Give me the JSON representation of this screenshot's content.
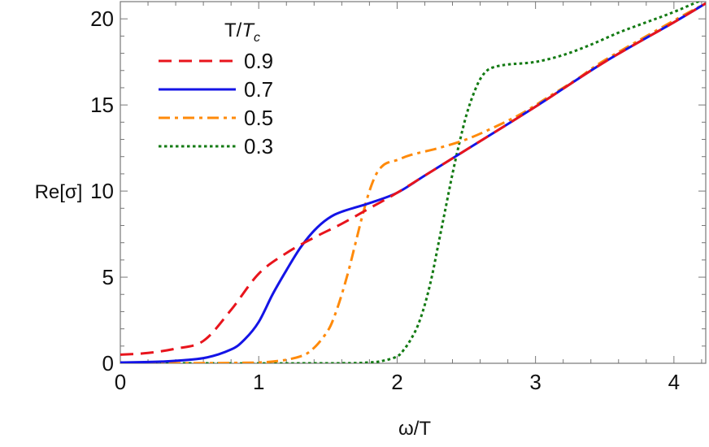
{
  "chart_data": {
    "type": "line",
    "title": "",
    "xlabel": "ω/T",
    "ylabel": "Re[σ]",
    "xlim": [
      0,
      4.23
    ],
    "ylim": [
      0,
      21
    ],
    "xticks": [
      "0",
      "1",
      "2",
      "3",
      "4"
    ],
    "yticks": [
      "0",
      "5",
      "10",
      "15",
      "20"
    ],
    "grid": false,
    "legend": {
      "title": "T/T_c",
      "title_main": "T/",
      "title_sym": "T",
      "title_sub": "c",
      "placement": "top-left"
    },
    "series": [
      {
        "name": "0.9",
        "color": "#e8141c",
        "style": "dashed",
        "x": [
          0,
          0.2,
          0.4,
          0.6,
          0.8,
          1.0,
          1.2,
          1.4,
          1.6,
          1.8,
          2.0,
          2.2,
          2.5,
          3.0,
          3.5,
          4.0,
          4.23
        ],
        "y": [
          0.5,
          0.6,
          0.85,
          1.3,
          3.1,
          5.2,
          6.4,
          7.3,
          8.1,
          9.0,
          9.9,
          10.9,
          12.4,
          14.9,
          17.5,
          19.8,
          20.9
        ]
      },
      {
        "name": "0.7",
        "color": "#1414e6",
        "style": "solid",
        "x": [
          0,
          0.3,
          0.6,
          0.8,
          0.9,
          1.0,
          1.1,
          1.2,
          1.3,
          1.4,
          1.5,
          1.6,
          1.8,
          2.0,
          2.2,
          2.5,
          3.0,
          3.5,
          4.0,
          4.23
        ],
        "y": [
          0.05,
          0.1,
          0.3,
          0.8,
          1.4,
          2.4,
          4.0,
          5.4,
          6.7,
          7.7,
          8.4,
          8.8,
          9.3,
          9.9,
          10.9,
          12.4,
          14.9,
          17.5,
          19.8,
          20.9
        ]
      },
      {
        "name": "0.5",
        "color": "#ff8a0a",
        "style": "dashdot",
        "x": [
          0,
          0.8,
          1.1,
          1.3,
          1.4,
          1.5,
          1.55,
          1.6,
          1.65,
          1.7,
          1.75,
          1.8,
          1.85,
          1.9,
          1.95,
          2.0,
          2.1,
          2.3,
          2.5,
          2.7,
          2.9,
          3.1,
          3.3,
          3.5,
          4.0,
          4.23
        ],
        "y": [
          0,
          0.02,
          0.1,
          0.4,
          0.9,
          1.9,
          2.8,
          4.0,
          5.4,
          7.0,
          8.6,
          10.0,
          11.0,
          11.5,
          11.7,
          11.8,
          12.1,
          12.5,
          13.0,
          13.7,
          14.5,
          15.5,
          16.5,
          17.6,
          19.9,
          20.9
        ]
      },
      {
        "name": "0.3",
        "color": "#137a13",
        "style": "dotted",
        "x": [
          0,
          1.5,
          1.8,
          1.9,
          2.0,
          2.05,
          2.1,
          2.15,
          2.2,
          2.25,
          2.3,
          2.35,
          2.4,
          2.45,
          2.5,
          2.55,
          2.6,
          2.65,
          2.7,
          2.8,
          3.0,
          3.2,
          3.4,
          3.6,
          3.8,
          4.0,
          4.23
        ],
        "y": [
          0,
          0,
          0.05,
          0.15,
          0.4,
          0.8,
          1.4,
          2.2,
          3.4,
          5.0,
          7.0,
          9.0,
          11.0,
          12.8,
          14.4,
          15.6,
          16.5,
          17.0,
          17.2,
          17.35,
          17.5,
          17.9,
          18.5,
          19.2,
          19.8,
          20.4,
          21.2
        ]
      }
    ]
  }
}
